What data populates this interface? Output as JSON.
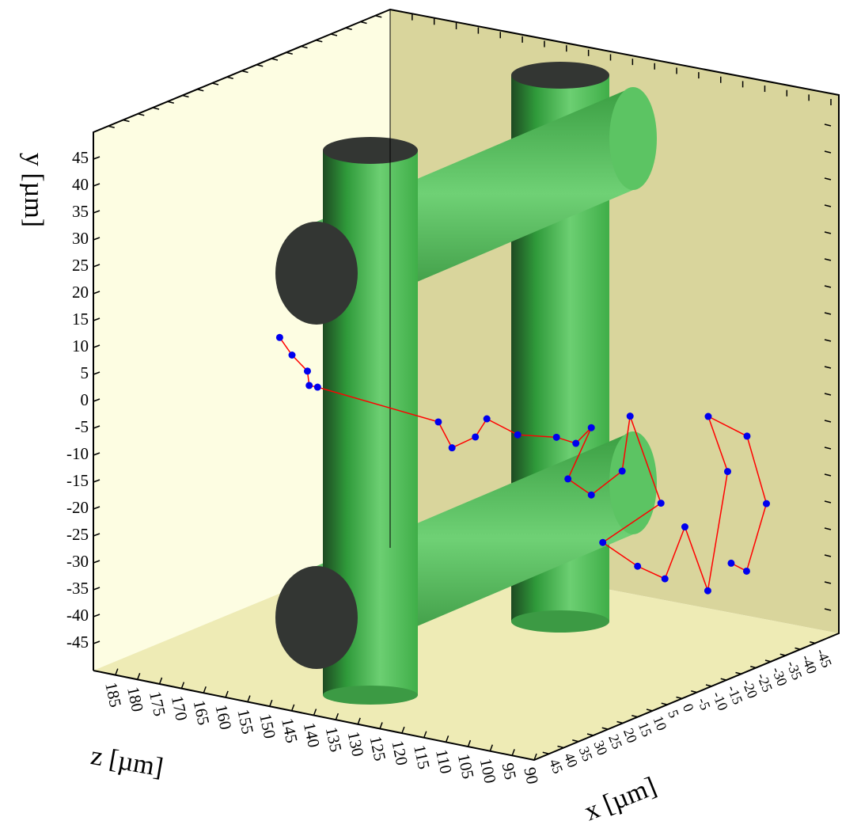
{
  "chart_data": {
    "type": "trajectory3d",
    "x_label": "x [µm]",
    "y_label": "y [µm]",
    "z_label": "z [µm]",
    "xlim": [
      50,
      -50
    ],
    "ylim": [
      -50,
      50
    ],
    "zlim": [
      190,
      90
    ],
    "xticks": [
      45,
      40,
      35,
      30,
      25,
      20,
      15,
      10,
      5,
      0,
      -5,
      -10,
      -15,
      -20,
      -25,
      -30,
      -35,
      -40,
      -45
    ],
    "yticks": [
      -45,
      -40,
      -35,
      -30,
      -25,
      -20,
      -15,
      -10,
      -5,
      0,
      5,
      10,
      15,
      20,
      25,
      30,
      35,
      40,
      45
    ],
    "zticks": [
      185,
      180,
      175,
      170,
      165,
      160,
      155,
      150,
      145,
      140,
      135,
      130,
      125,
      120,
      115,
      110,
      105,
      100,
      95,
      90
    ],
    "line_color": "#ff0000",
    "marker_color": "#0000ee",
    "x": [
      0,
      0,
      0,
      0,
      0,
      0,
      0,
      0,
      0,
      0,
      0,
      0,
      0,
      0,
      0,
      0,
      0,
      0,
      0,
      0,
      0,
      -25,
      -25,
      -40,
      -40,
      -40,
      -40,
      -25,
      -25
    ],
    "y": [
      1.9,
      -0.9,
      -3.3,
      -5.9,
      -5.9,
      -7.8,
      -12.1,
      -9.2,
      -5.4,
      -7.2,
      -6.2,
      -6.6,
      -3.1,
      -13.5,
      -15.6,
      -10,
      0.5,
      -14.5,
      -24,
      -27.1,
      -28.4,
      -26.5,
      -37.5,
      -19.7,
      -10.2,
      -12.4,
      -24.2,
      -32.4,
      -31.5
    ],
    "z": [
      181.4,
      178.6,
      175.1,
      174.7,
      172.8,
      145.4,
      142.3,
      137,
      134.4,
      127.4,
      118.6,
      114.2,
      110.7,
      116,
      110.7,
      103.7,
      101.9,
      94.9,
      108.1,
      100.2,
      94,
      106.3,
      101.1,
      106.7,
      111.1,
      102.3,
      97.9,
      92.3,
      95.8
    ]
  }
}
